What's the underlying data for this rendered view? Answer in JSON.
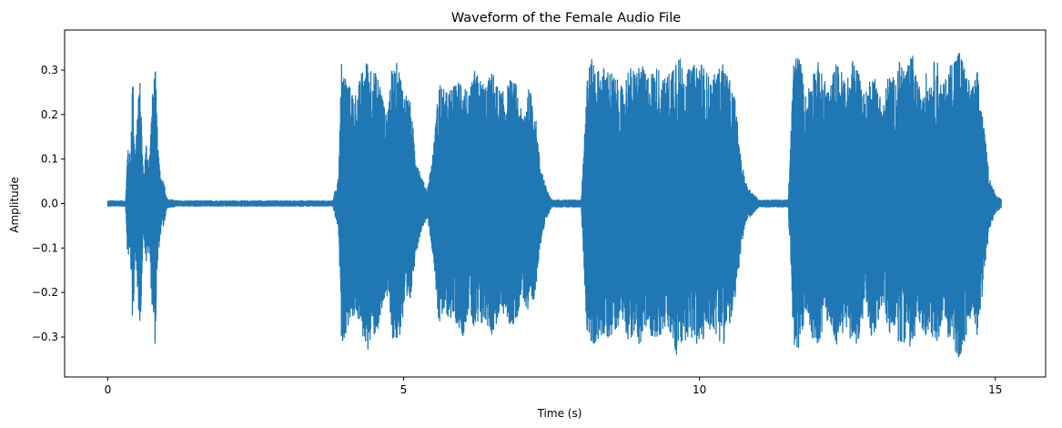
{
  "chart_data": {
    "type": "line",
    "title": "Waveform of the Female Audio File",
    "xlabel": "Time (s)",
    "ylabel": "Amplitude",
    "xlim": [
      -0.73,
      15.85
    ],
    "ylim": [
      -0.39,
      0.39
    ],
    "x_ticks": [
      0,
      5,
      10,
      15
    ],
    "x_tick_labels": [
      "0",
      "5",
      "10",
      "15"
    ],
    "y_ticks": [
      -0.3,
      -0.2,
      -0.1,
      0.0,
      0.1,
      0.2,
      0.3
    ],
    "y_tick_labels": [
      "−0.3",
      "−0.2",
      "−0.1",
      "0.0",
      "0.1",
      "0.2",
      "0.3"
    ],
    "grid": false,
    "series": [
      {
        "color": "#1f77b4",
        "duration_s": 15.1,
        "envelope": {
          "t": [
            0.0,
            0.3,
            0.34,
            0.38,
            0.42,
            0.46,
            0.5,
            0.55,
            0.6,
            0.65,
            0.7,
            0.75,
            0.8,
            0.85,
            0.9,
            0.95,
            1.0,
            1.2,
            3.8,
            3.9,
            3.95,
            4.0,
            4.1,
            4.2,
            4.3,
            4.4,
            4.5,
            4.6,
            4.7,
            4.8,
            4.9,
            5.0,
            5.1,
            5.2,
            5.3,
            5.4,
            5.5,
            5.6,
            5.7,
            5.8,
            5.9,
            6.0,
            6.1,
            6.2,
            6.3,
            6.4,
            6.5,
            6.6,
            6.7,
            6.8,
            6.9,
            7.0,
            7.1,
            7.2,
            7.3,
            7.4,
            7.5,
            8.0,
            8.1,
            8.2,
            8.3,
            8.4,
            8.5,
            8.6,
            8.7,
            8.8,
            8.9,
            9.0,
            9.1,
            9.2,
            9.3,
            9.4,
            9.5,
            9.6,
            9.7,
            9.8,
            9.9,
            10.0,
            10.1,
            10.2,
            10.3,
            10.4,
            10.5,
            10.6,
            10.7,
            10.8,
            11.0,
            11.5,
            11.6,
            11.7,
            11.8,
            11.9,
            12.0,
            12.1,
            12.2,
            12.3,
            12.4,
            12.5,
            12.6,
            12.7,
            12.8,
            12.9,
            13.0,
            13.1,
            13.2,
            13.3,
            13.4,
            13.5,
            13.6,
            13.7,
            13.8,
            13.9,
            14.0,
            14.1,
            14.2,
            14.3,
            14.4,
            14.5,
            14.6,
            14.7,
            14.8,
            14.9,
            15.0,
            15.1
          ],
          "amp": [
            0.006,
            0.006,
            0.14,
            0.1,
            0.31,
            0.1,
            0.22,
            0.28,
            0.06,
            0.14,
            0.1,
            0.24,
            0.32,
            0.12,
            0.06,
            0.05,
            0.01,
            0.006,
            0.006,
            0.06,
            0.32,
            0.3,
            0.26,
            0.25,
            0.3,
            0.33,
            0.3,
            0.28,
            0.2,
            0.3,
            0.32,
            0.26,
            0.24,
            0.12,
            0.06,
            0.03,
            0.12,
            0.28,
            0.25,
            0.26,
            0.27,
            0.3,
            0.24,
            0.3,
            0.28,
            0.27,
            0.3,
            0.26,
            0.25,
            0.28,
            0.27,
            0.2,
            0.26,
            0.24,
            0.1,
            0.04,
            0.008,
            0.008,
            0.3,
            0.33,
            0.3,
            0.31,
            0.3,
            0.28,
            0.26,
            0.31,
            0.3,
            0.32,
            0.29,
            0.3,
            0.31,
            0.28,
            0.3,
            0.35,
            0.32,
            0.3,
            0.31,
            0.33,
            0.3,
            0.28,
            0.3,
            0.32,
            0.28,
            0.24,
            0.1,
            0.04,
            0.008,
            0.008,
            0.35,
            0.33,
            0.24,
            0.3,
            0.32,
            0.28,
            0.26,
            0.32,
            0.3,
            0.28,
            0.33,
            0.3,
            0.24,
            0.3,
            0.28,
            0.22,
            0.3,
            0.28,
            0.33,
            0.3,
            0.34,
            0.26,
            0.3,
            0.28,
            0.34,
            0.26,
            0.3,
            0.34,
            0.35,
            0.3,
            0.26,
            0.3,
            0.18,
            0.06,
            0.02,
            0.01
          ]
        }
      }
    ]
  }
}
